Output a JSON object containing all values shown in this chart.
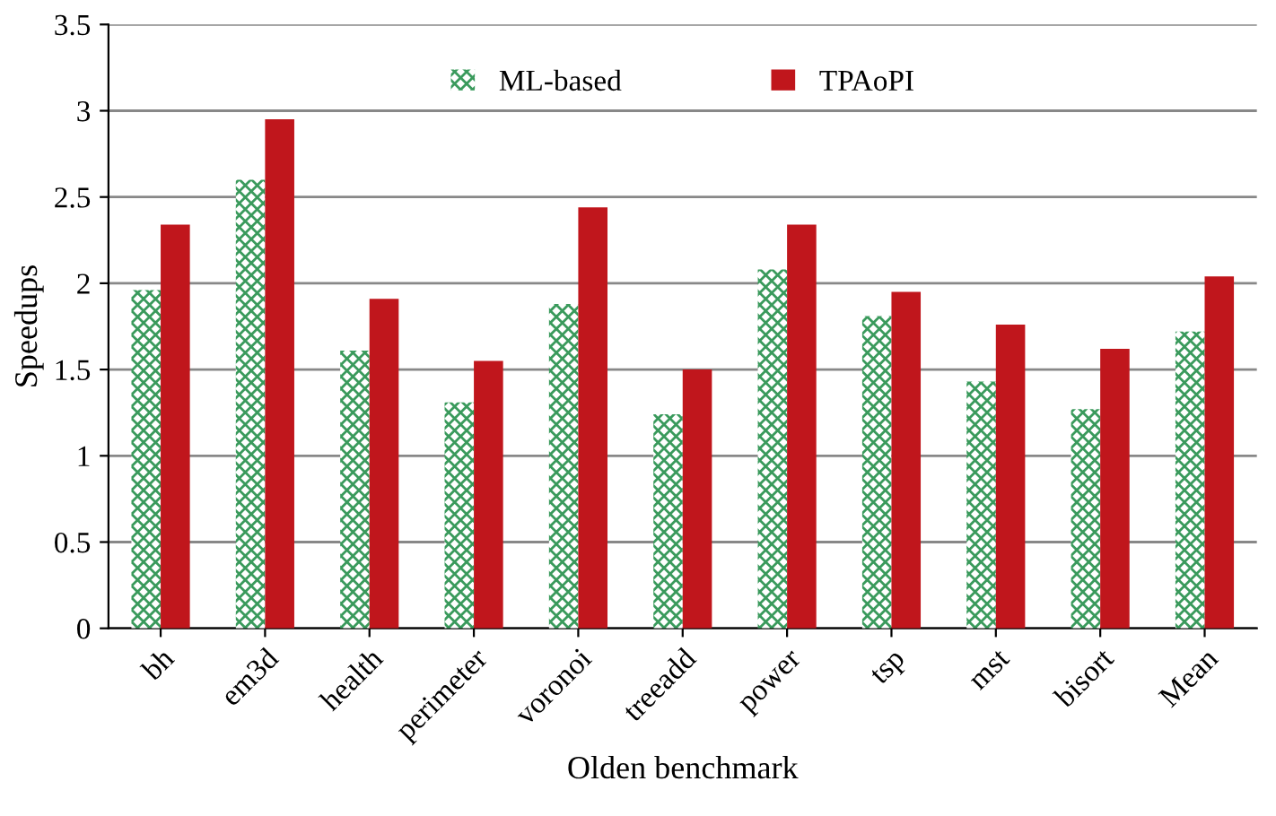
{
  "chart_data": {
    "type": "bar",
    "xlabel": "Olden benchmark",
    "ylabel": "Speedups",
    "categories": [
      "bh",
      "em3d",
      "health",
      "perimeter",
      "voronoi",
      "treeadd",
      "power",
      "tsp",
      "mst",
      "bisort",
      "Mean"
    ],
    "series": [
      {
        "name": "ML-based",
        "color": "#3a9a5c",
        "values": [
          1.96,
          2.6,
          1.61,
          1.31,
          1.88,
          1.24,
          2.08,
          1.81,
          1.43,
          1.27,
          1.72
        ]
      },
      {
        "name": "TPAoPI",
        "color": "#c0161c",
        "values": [
          2.34,
          2.95,
          1.91,
          1.55,
          2.44,
          1.5,
          2.34,
          1.95,
          1.76,
          1.62,
          2.04
        ]
      }
    ],
    "ylim": [
      0,
      3.5
    ],
    "yticks": [
      0,
      0.5,
      1,
      1.5,
      2,
      2.5,
      3,
      3.5
    ],
    "grid": "y",
    "legend": "top"
  }
}
